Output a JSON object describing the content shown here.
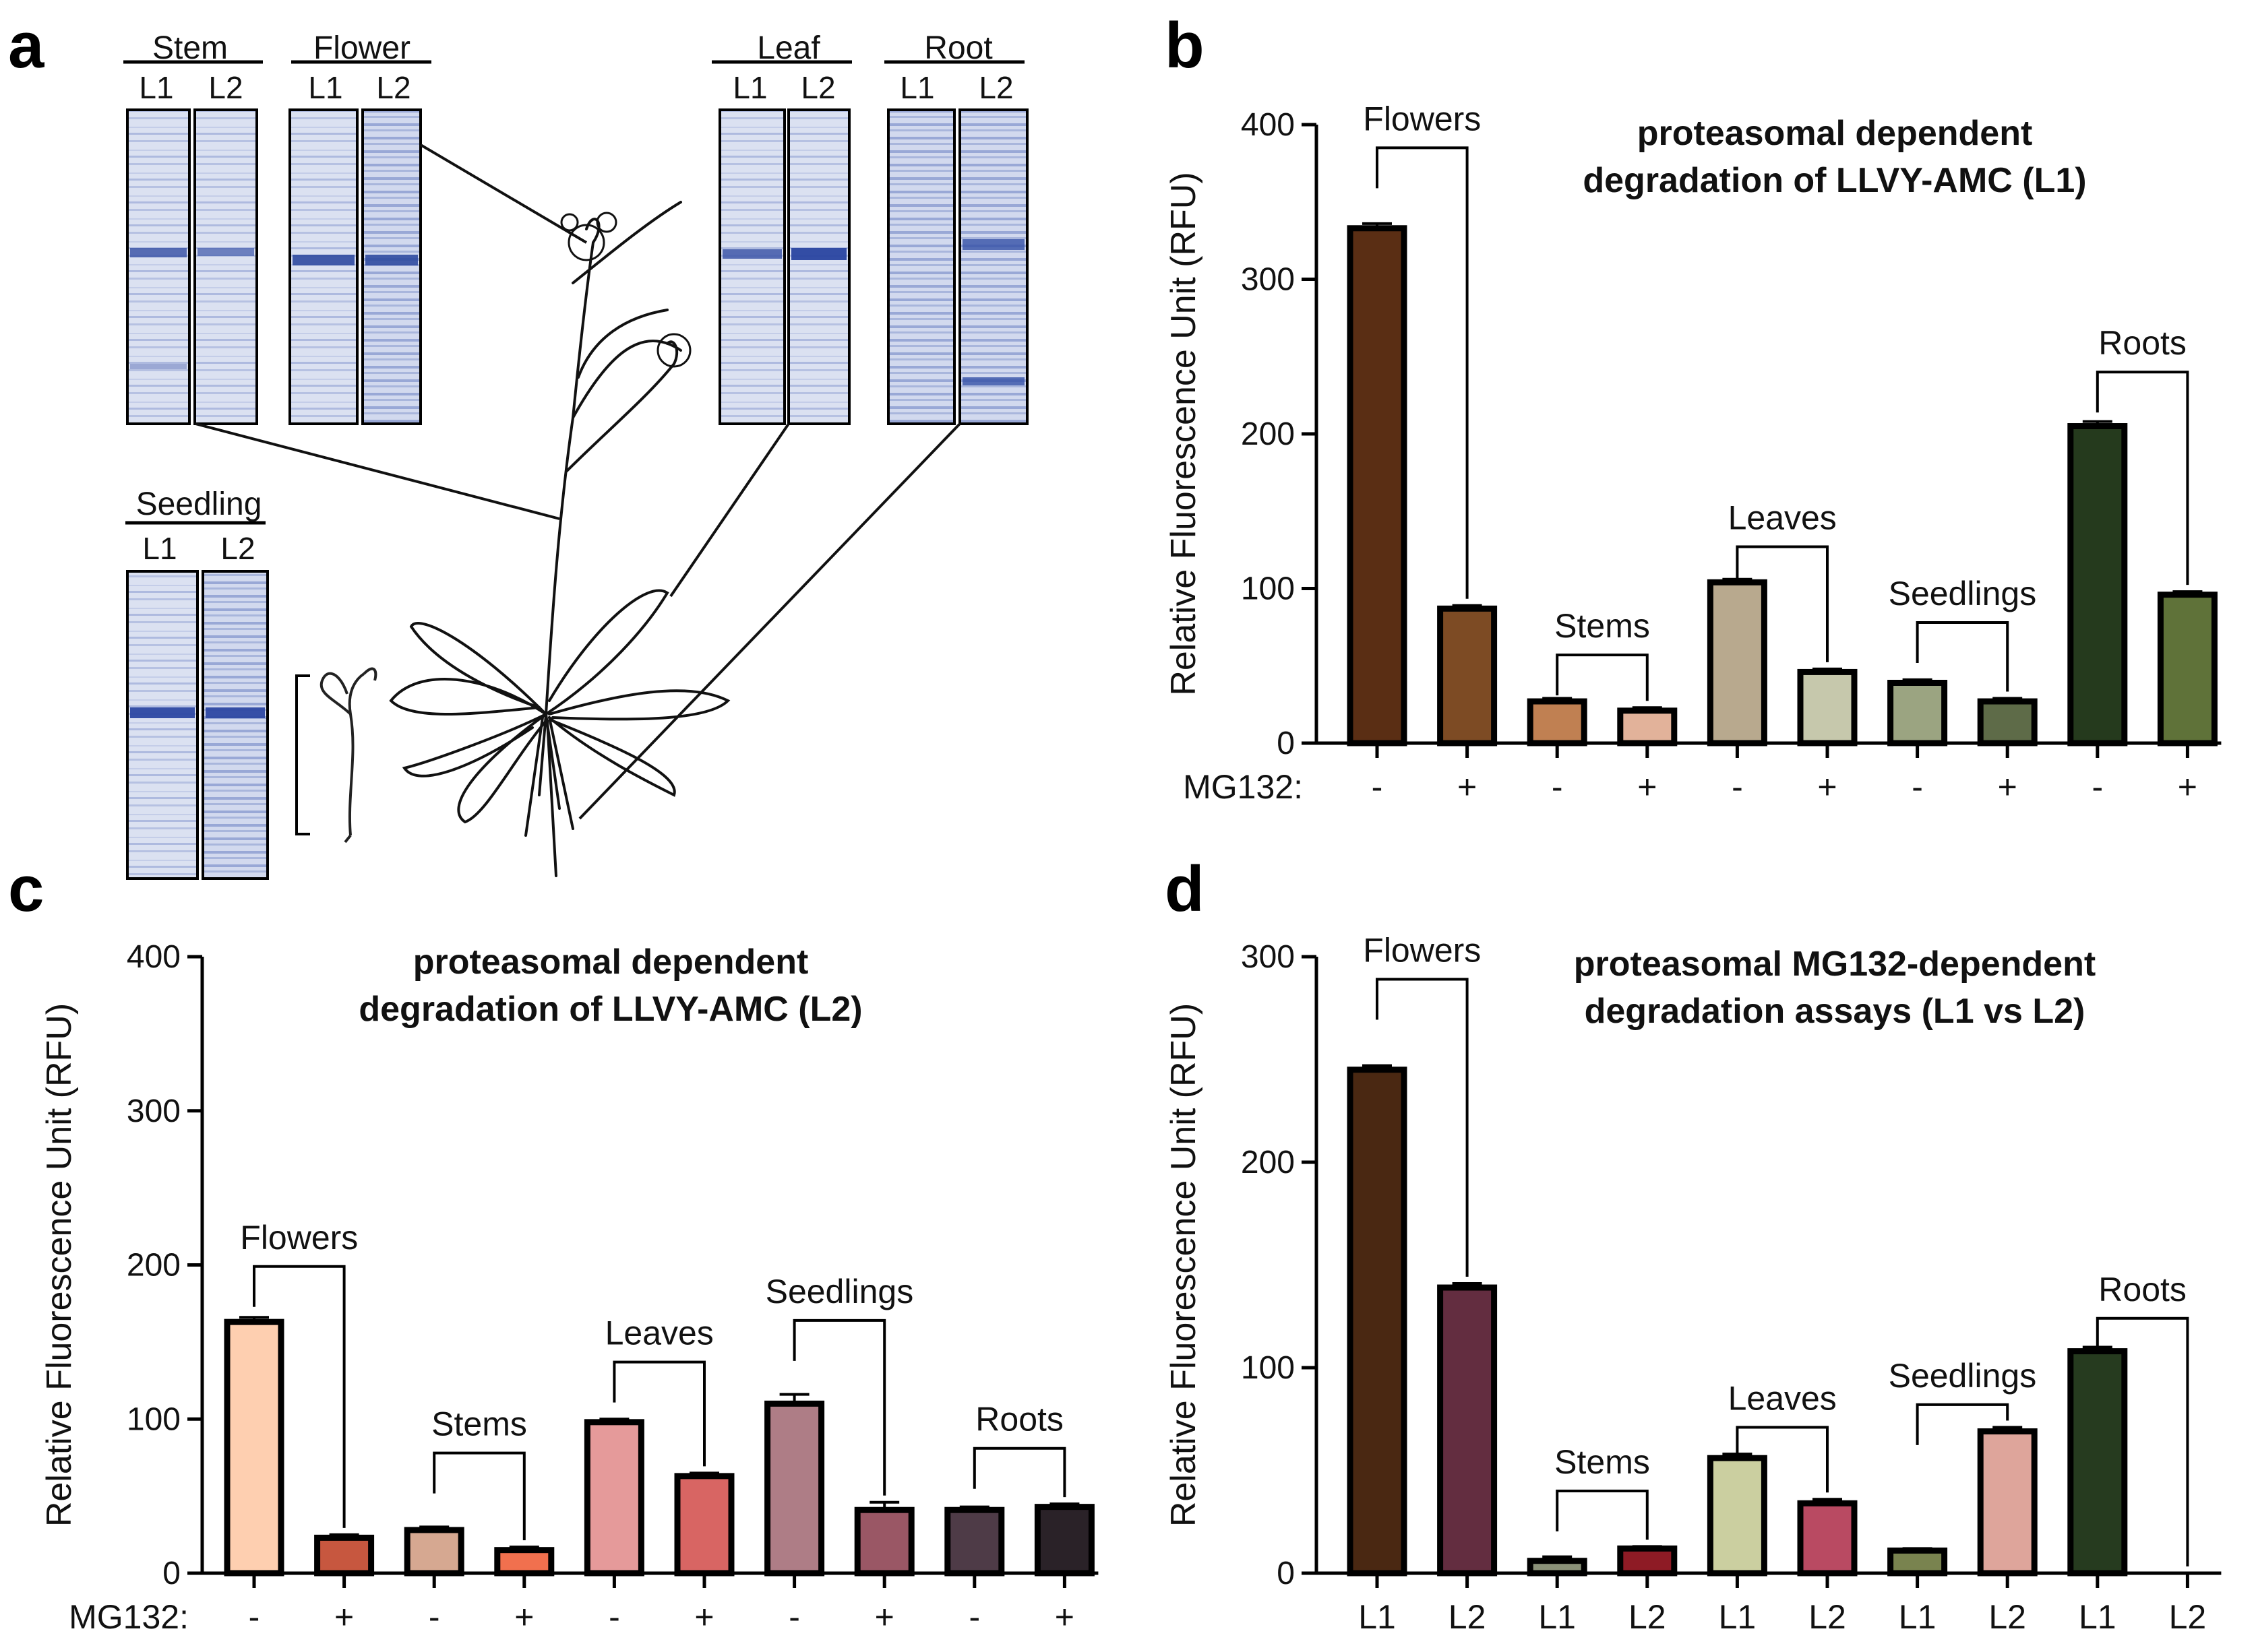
{
  "panel_labels": [
    "a",
    "b",
    "c",
    "d"
  ],
  "gels": [
    {
      "title": "Stem",
      "lanes": [
        "L1",
        "L2"
      ]
    },
    {
      "title": "Flower",
      "lanes": [
        "L1",
        "L2"
      ]
    },
    {
      "title": "Leaf",
      "lanes": [
        "L1",
        "L2"
      ]
    },
    {
      "title": "Root",
      "lanes": [
        "L1",
        "L2"
      ]
    },
    {
      "title": "Seedling",
      "lanes": [
        "L1",
        "L2"
      ]
    }
  ],
  "colors": {
    "flowers": [
      "#5a2e14",
      "#7d4b24"
    ],
    "stems_b": [
      "#c08052",
      "#e2b29a"
    ],
    "leaves_b": [
      "#b8a98e",
      "#c6c8ac"
    ],
    "seedlings_b": [
      "#9ba481",
      "#5e6b48"
    ],
    "roots_b": [
      "#253a1d",
      "#5f7239"
    ],
    "gel_band": "#3d56a8",
    "gel_bg": "#dbe1f1"
  },
  "chart_data": [
    {
      "id": "b",
      "type": "bar",
      "title": [
        "proteasomal dependent",
        "degradation of LLVY-AMC (L1)"
      ],
      "ylabel": "Relative Fluorescence Unit (RFU)",
      "ylim": [
        0,
        400
      ],
      "yticks": [
        0,
        100,
        200,
        300,
        400
      ],
      "xaxis_label": "MG132:",
      "x_labels": [
        "-",
        "+",
        "-",
        "+",
        "-",
        "+",
        "-",
        "+",
        "-",
        "+"
      ],
      "values": [
        333,
        87,
        27,
        21,
        104,
        46,
        39,
        27,
        205,
        96
      ],
      "errors": [
        3,
        2,
        2,
        2,
        2,
        2,
        2,
        2,
        3,
        2
      ],
      "bar_colors": [
        "#5a2e14",
        "#7d4b24",
        "#c08052",
        "#e2b29a",
        "#b8a98e",
        "#c6c8ac",
        "#9ba481",
        "#5e6b48",
        "#253a1d",
        "#5f7239"
      ],
      "groups": [
        {
          "label": "Flowers",
          "bracket_y": 385
        },
        {
          "label": "Stems",
          "bracket_y": 57
        },
        {
          "label": "Leaves",
          "bracket_y": 127
        },
        {
          "label": "Seedlings",
          "bracket_y": 78
        },
        {
          "label": "Roots",
          "bracket_y": 240
        }
      ]
    },
    {
      "id": "c",
      "type": "bar",
      "title": [
        "proteasomal dependent",
        "degradation of LLVY-AMC (L2)"
      ],
      "ylabel": "Relative Fluorescence Unit (RFU)",
      "ylim": [
        0,
        400
      ],
      "yticks": [
        0,
        100,
        200,
        300,
        400
      ],
      "xaxis_label": "MG132:",
      "x_labels": [
        "-",
        "+",
        "-",
        "+",
        "-",
        "+",
        "-",
        "+",
        "-",
        "+"
      ],
      "values": [
        163,
        23,
        28,
        15,
        98,
        63,
        110,
        41,
        41,
        43
      ],
      "errors": [
        3,
        2,
        2,
        2,
        2,
        2,
        6,
        5,
        2,
        2
      ],
      "bar_colors": [
        "#fecfb0",
        "#c7573f",
        "#d6a891",
        "#f1704e",
        "#e59a9a",
        "#d86563",
        "#ae7d86",
        "#9a5765",
        "#4e3b47",
        "#2a2228"
      ],
      "groups": [
        {
          "label": "Flowers",
          "bracket_y": 199
        },
        {
          "label": "Stems",
          "bracket_y": 78
        },
        {
          "label": "Leaves",
          "bracket_y": 137
        },
        {
          "label": "Seedlings",
          "bracket_y": 164
        },
        {
          "label": "Roots",
          "bracket_y": 81
        }
      ]
    },
    {
      "id": "d",
      "type": "bar",
      "title": [
        "proteasomal MG132-dependent",
        "degradation assays (L1 vs L2)"
      ],
      "ylabel": "Relative Fluorescence Unit (RFU)",
      "ylim": [
        0,
        300
      ],
      "yticks": [
        0,
        100,
        200,
        300
      ],
      "xaxis_label": "",
      "x_labels": [
        "L1",
        "L2",
        "L1",
        "L2",
        "L1",
        "L2",
        "L1",
        "L2",
        "L1",
        "L2"
      ],
      "values": [
        245,
        139,
        6,
        12,
        56,
        34,
        11,
        69,
        108,
        0
      ],
      "errors": [
        2,
        2,
        2,
        1,
        2,
        2,
        1,
        2,
        2,
        0
      ],
      "bar_colors": [
        "#4a2812",
        "#632d40",
        "#8a9178",
        "#8e1b25",
        "#cbcfa0",
        "#b94a62",
        "#79834f",
        "#dea59b",
        "#263b1f",
        "#444444"
      ],
      "groups": [
        {
          "label": "Flowers",
          "bracket_y": 289
        },
        {
          "label": "Stems",
          "bracket_y": 40
        },
        {
          "label": "Leaves",
          "bracket_y": 71
        },
        {
          "label": "Seedlings",
          "bracket_y": 82
        },
        {
          "label": "Roots",
          "bracket_y": 124
        }
      ]
    }
  ]
}
